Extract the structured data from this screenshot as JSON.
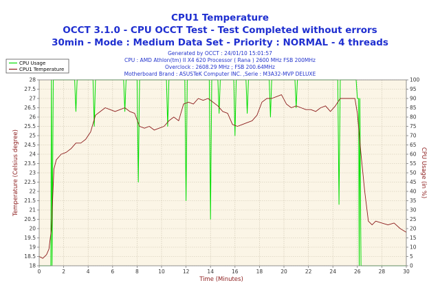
{
  "chart_data": {
    "type": "line",
    "title": "CPU1 Temperature",
    "subtitle_lines": [
      "OCCT 3.1.0 - CPU OCCT Test - Test Completed without errors",
      "30min - Mode : Medium Data Set - Priority : NORMAL - 4 threads"
    ],
    "info_lines": [
      "Generated by OCCT : 24/01/10 15:01:57",
      "CPU : AMD Athlon(tm) II X4 620 Processor ( Rana ) 2600 MHz FSB 200MHz",
      "Overclock : 2608.29 MHz ; FSB 200.64MHz",
      "Motherboard Brand : ASUSTeK Computer INC. ,Serie : M3A32-MVP DELUXE"
    ],
    "xlabel": "Time (Minutes)",
    "ylabel": "Temperature (Celsius degree)",
    "y2label": "CPU Usage (in %)",
    "xlim": [
      0,
      30
    ],
    "ylim": [
      18,
      28
    ],
    "y2lim": [
      0,
      100
    ],
    "x_ticks": [
      "0",
      "2",
      "4",
      "6",
      "8",
      "10",
      "12",
      "14",
      "16",
      "18",
      "20",
      "22",
      "24",
      "26",
      "28",
      "30"
    ],
    "y_ticks": [
      "18",
      "18.5",
      "19",
      "19.5",
      "20",
      "20.5",
      "21",
      "21.5",
      "22",
      "22.5",
      "23",
      "23.5",
      "24",
      "24.5",
      "25",
      "25.5",
      "26",
      "26.5",
      "27",
      "27.5",
      "28"
    ],
    "y2_ticks": [
      "0",
      "5",
      "10",
      "15",
      "20",
      "25",
      "30",
      "35",
      "40",
      "45",
      "50",
      "55",
      "60",
      "65",
      "70",
      "75",
      "80",
      "85",
      "90",
      "95",
      "100"
    ],
    "grid": true,
    "legend_position": "top-left",
    "series": [
      {
        "name": "CPU Usage",
        "axis": "right",
        "color": "#00dd00",
        "x": [
          0,
          0.95,
          1.0,
          1.05,
          1.15,
          1.3,
          2.9,
          3.0,
          3.1,
          4.4,
          4.5,
          4.6,
          6.9,
          7.0,
          7.1,
          8.0,
          8.1,
          8.2,
          10.4,
          10.5,
          10.6,
          11.9,
          12.0,
          12.1,
          13.9,
          14.0,
          14.1,
          14.6,
          14.7,
          14.8,
          15.9,
          16.0,
          16.1,
          16.9,
          17.0,
          17.1,
          18.8,
          18.9,
          19.0,
          20.9,
          21.0,
          21.1,
          24.4,
          24.5,
          24.6,
          25.9,
          26.0,
          26.1,
          26.15,
          26.2,
          26.3,
          30
        ],
        "values": [
          0,
          0,
          100,
          0,
          100,
          100,
          100,
          83,
          100,
          100,
          75,
          100,
          100,
          83,
          100,
          100,
          45,
          100,
          100,
          75,
          100,
          100,
          35,
          100,
          100,
          25,
          100,
          100,
          82,
          100,
          100,
          70,
          100,
          100,
          82,
          100,
          100,
          80,
          100,
          100,
          85,
          100,
          100,
          33,
          100,
          100,
          90,
          90,
          0,
          90,
          0,
          0
        ]
      },
      {
        "name": "CPU1 Temperature",
        "axis": "left",
        "color": "#8b1a1a",
        "x": [
          0,
          0.3,
          0.6,
          0.8,
          1.0,
          1.2,
          1.4,
          1.8,
          2.2,
          2.6,
          3.0,
          3.4,
          3.8,
          4.2,
          4.6,
          5.0,
          5.4,
          5.8,
          6.2,
          6.6,
          7.0,
          7.4,
          7.8,
          8.2,
          8.6,
          9.0,
          9.4,
          9.8,
          10.2,
          10.6,
          11.0,
          11.4,
          11.8,
          12.2,
          12.6,
          13.0,
          13.4,
          13.8,
          14.2,
          14.6,
          15.0,
          15.4,
          15.8,
          16.2,
          16.6,
          17.0,
          17.4,
          17.8,
          18.2,
          18.6,
          19.0,
          19.4,
          19.8,
          20.2,
          20.6,
          21.0,
          21.4,
          21.8,
          22.2,
          22.6,
          23.0,
          23.4,
          23.8,
          24.2,
          24.6,
          25.0,
          25.4,
          25.8,
          26.0,
          26.3,
          26.6,
          26.9,
          27.2,
          27.5,
          28.0,
          28.5,
          29.0,
          29.5,
          30.0
        ],
        "values": [
          18.5,
          18.4,
          18.6,
          18.9,
          20.0,
          23.2,
          23.7,
          24.0,
          24.1,
          24.3,
          24.6,
          24.6,
          24.8,
          25.2,
          26.1,
          26.3,
          26.5,
          26.4,
          26.3,
          26.4,
          26.5,
          26.3,
          26.2,
          25.5,
          25.4,
          25.5,
          25.3,
          25.4,
          25.5,
          25.8,
          26.0,
          25.8,
          26.7,
          26.8,
          26.7,
          27.0,
          26.9,
          27.0,
          26.8,
          26.6,
          26.3,
          26.2,
          25.6,
          25.5,
          25.6,
          25.7,
          25.8,
          26.1,
          26.8,
          27.0,
          27.0,
          27.1,
          27.2,
          26.7,
          26.5,
          26.6,
          26.5,
          26.4,
          26.4,
          26.3,
          26.5,
          26.6,
          26.3,
          26.6,
          27.0,
          27.0,
          27.0,
          27.0,
          26.2,
          24.0,
          22.0,
          20.4,
          20.2,
          20.4,
          20.3,
          20.2,
          20.3,
          20.0,
          19.8
        ]
      }
    ]
  }
}
